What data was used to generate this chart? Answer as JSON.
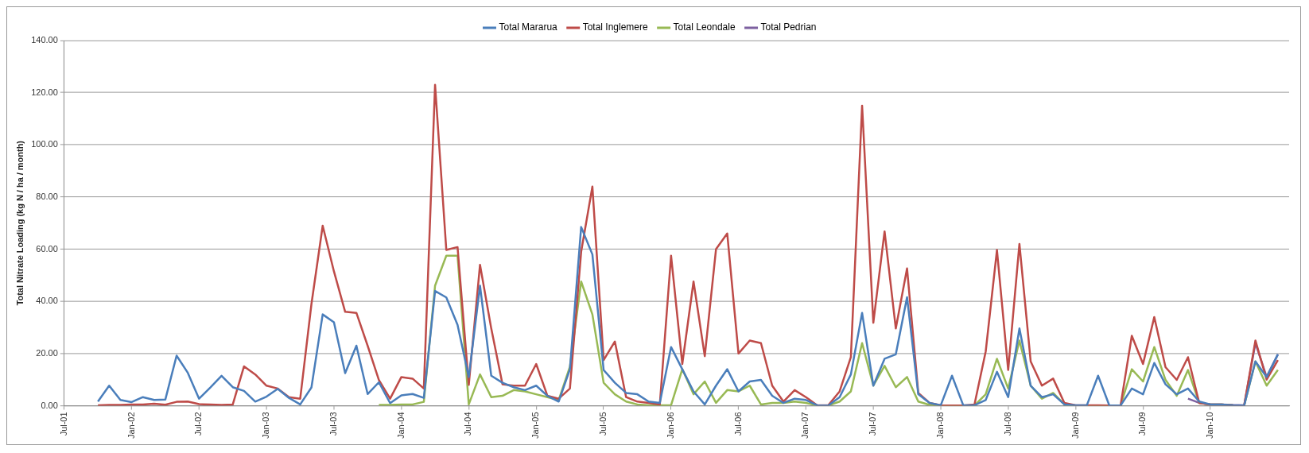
{
  "chart_data": {
    "type": "line",
    "ylabel": "Total Nitrate Loading (kg N / ha / month)",
    "x": [
      "2001-10",
      "2001-11",
      "2001-12",
      "2002-01",
      "2002-02",
      "2002-03",
      "2002-04",
      "2002-05",
      "2002-06",
      "2002-07",
      "2002-08",
      "2002-09",
      "2002-10",
      "2002-11",
      "2002-12",
      "2003-01",
      "2003-02",
      "2003-03",
      "2003-04",
      "2003-05",
      "2003-06",
      "2003-07",
      "2003-08",
      "2003-09",
      "2003-10",
      "2003-11",
      "2003-12",
      "2004-01",
      "2004-02",
      "2004-03",
      "2004-04",
      "2004-05",
      "2004-06",
      "2004-07",
      "2004-08",
      "2004-09",
      "2004-10",
      "2004-11",
      "2004-12",
      "2005-01",
      "2005-02",
      "2005-03",
      "2005-04",
      "2005-05",
      "2005-06",
      "2005-07",
      "2005-08",
      "2005-09",
      "2005-10",
      "2005-11",
      "2005-12",
      "2006-01",
      "2006-02",
      "2006-03",
      "2006-04",
      "2006-05",
      "2006-06",
      "2006-07",
      "2006-08",
      "2006-09",
      "2006-10",
      "2006-11",
      "2006-12",
      "2007-01",
      "2007-02",
      "2007-03",
      "2007-04",
      "2007-05",
      "2007-06",
      "2007-07",
      "2007-08",
      "2007-09",
      "2007-10",
      "2007-11",
      "2007-12",
      "2008-01",
      "2008-02",
      "2008-03",
      "2008-04",
      "2008-05",
      "2008-06",
      "2008-07",
      "2008-08",
      "2008-09",
      "2008-10",
      "2008-11",
      "2008-12",
      "2009-01",
      "2009-02",
      "2009-03",
      "2009-04",
      "2009-05",
      "2009-06",
      "2009-07",
      "2009-08",
      "2009-09",
      "2009-10",
      "2009-11",
      "2009-12",
      "2010-01",
      "2010-02",
      "2010-03",
      "2010-04",
      "2010-05",
      "2010-06",
      "2010-07"
    ],
    "series": [
      {
        "name": "Total Mararua",
        "color": "#4a7ebb",
        "values": [
          1.6,
          7.7,
          2.2,
          1.4,
          3.3,
          2.2,
          2.4,
          19.2,
          12.6,
          2.7,
          7,
          11.5,
          7.1,
          5.7,
          1.6,
          3.5,
          6.5,
          3,
          0.5,
          7,
          35,
          32,
          12.5,
          23,
          4.5,
          9,
          1,
          4,
          4.5,
          3,
          44,
          41.5,
          31,
          11,
          46,
          11.5,
          8.8,
          7.1,
          6,
          7.7,
          3.8,
          1.6,
          14,
          68.5,
          58,
          13.7,
          8.8,
          4.9,
          4.4,
          1.6,
          1.1,
          22.5,
          14,
          5.5,
          0.5,
          7.7,
          14,
          5.5,
          9.3,
          9.9,
          3.8,
          1.1,
          2.7,
          2.2,
          0.2,
          0.1,
          3.3,
          12,
          35.6,
          7.7,
          18,
          19.7,
          41.6,
          4.4,
          1.1,
          0.2,
          11.5,
          0.2,
          0.2,
          2.2,
          13,
          3.3,
          29.6,
          7.7,
          3.3,
          4.4,
          0.5,
          0.2,
          0.2,
          11.5,
          0.1,
          0.1,
          6.6,
          4.4,
          16.4,
          8.2,
          4.4,
          6.6,
          1.6,
          0.5,
          0.5,
          0.2,
          0.1,
          17,
          11,
          19.7
        ]
      },
      {
        "name": "Total Inglemere",
        "color": "#be4b48",
        "values": [
          0.2,
          0.3,
          0.3,
          0.5,
          0.5,
          0.8,
          0.4,
          1.5,
          1.6,
          0.6,
          0.5,
          0.3,
          0.5,
          15.1,
          12,
          7.7,
          6.6,
          3.3,
          2.7,
          39,
          69,
          51.5,
          36,
          35.6,
          23,
          9.9,
          2.7,
          11,
          10.4,
          6.6,
          123,
          59.7,
          60.8,
          8,
          54,
          29.6,
          8.2,
          7.7,
          7.7,
          16,
          3.8,
          2.7,
          6.6,
          59,
          84,
          17.5,
          24.6,
          3.3,
          1.6,
          1.1,
          0.5,
          57.5,
          16,
          47.6,
          19,
          60,
          66,
          20,
          25,
          24,
          7.7,
          1.6,
          6,
          3.3,
          0.2,
          0.2,
          5.5,
          18.6,
          115,
          31.8,
          66.8,
          29.6,
          52.6,
          4.9,
          1.1,
          0.2,
          0.1,
          0.1,
          0.5,
          20.8,
          59.7,
          13.7,
          62,
          17,
          7.7,
          10.4,
          1.1,
          0.2,
          0.2,
          0.2,
          0.1,
          0.1,
          26.8,
          16,
          34,
          14.8,
          9.9,
          18.6,
          1.1,
          0.5,
          0.5,
          0.2,
          0.1,
          25,
          10,
          17.5
        ]
      },
      {
        "name": "Total Leondale",
        "color": "#98b954",
        "x": [
          "2003-11",
          "2003-12",
          "2004-01",
          "2004-02",
          "2004-03",
          "2004-04",
          "2004-05",
          "2004-06",
          "2004-07",
          "2004-08",
          "2004-09",
          "2004-10",
          "2004-11",
          "2004-12",
          "2005-01",
          "2005-02",
          "2005-03",
          "2005-04",
          "2005-05",
          "2005-06",
          "2005-07",
          "2005-08",
          "2005-09",
          "2005-10",
          "2005-11",
          "2005-12",
          "2006-01",
          "2006-02",
          "2006-03",
          "2006-04",
          "2006-05",
          "2006-06",
          "2006-07",
          "2006-08",
          "2006-09",
          "2006-10",
          "2006-11",
          "2006-12",
          "2007-01",
          "2007-02",
          "2007-03",
          "2007-04",
          "2007-05",
          "2007-06",
          "2007-07",
          "2007-08",
          "2007-09",
          "2007-10",
          "2007-11",
          "2007-12",
          "2008-01",
          "2008-02",
          "2008-03",
          "2008-04",
          "2008-05",
          "2008-06",
          "2008-07",
          "2008-08",
          "2008-09",
          "2008-10",
          "2008-11",
          "2008-12",
          "2009-01",
          "2009-02",
          "2009-03",
          "2009-04",
          "2009-05",
          "2009-06",
          "2009-07",
          "2009-08",
          "2009-09",
          "2009-10",
          "2009-11",
          "2009-12",
          "2010-01",
          "2010-02",
          "2010-03",
          "2010-04",
          "2010-05",
          "2010-06",
          "2010-07"
        ],
        "values": [
          0.3,
          0.3,
          0.5,
          0.5,
          1.5,
          46,
          57.5,
          57.5,
          0.5,
          12,
          3.3,
          3.8,
          6,
          5.5,
          4.4,
          3.3,
          2.2,
          15,
          47.6,
          35,
          8.8,
          4.4,
          1.6,
          0.5,
          0.2,
          0.2,
          0.2,
          14,
          4.4,
          9.3,
          1.1,
          6,
          5.5,
          7.7,
          0.5,
          1.1,
          1.1,
          1.6,
          1.1,
          0.1,
          0.1,
          1.6,
          5.5,
          24,
          7.7,
          15.3,
          7.1,
          11,
          1.6,
          0.3,
          0.1,
          0.1,
          0.1,
          0.1,
          4.4,
          18,
          6.6,
          25,
          7.7,
          2.7,
          4.9,
          0.5,
          0.1,
          0.1,
          0.1,
          0.1,
          0.1,
          14,
          9.3,
          22.5,
          9.9,
          3.8,
          13.7,
          1.1,
          0.5,
          0.5,
          0.2,
          0.1,
          17,
          7.7,
          13.7
        ]
      },
      {
        "name": "Total Pedrian",
        "color": "#7d60a0",
        "x": [
          "2009-11",
          "2009-12",
          "2010-01",
          "2010-02",
          "2010-03",
          "2010-04",
          "2010-05",
          "2010-06",
          "2010-07"
        ],
        "values": [
          2.7,
          1.1,
          0.5,
          0.5,
          0.3,
          0.2,
          24,
          11,
          19.7
        ]
      }
    ],
    "xlim": [
      "2001-07",
      "2010-08"
    ],
    "xticks": [
      {
        "value": "2001-07",
        "label": "Jul-01"
      },
      {
        "value": "2002-01",
        "label": "Jan-02"
      },
      {
        "value": "2002-07",
        "label": "Jul-02"
      },
      {
        "value": "2003-01",
        "label": "Jan-03"
      },
      {
        "value": "2003-07",
        "label": "Jul-03"
      },
      {
        "value": "2004-01",
        "label": "Jan-04"
      },
      {
        "value": "2004-07",
        "label": "Jul-04"
      },
      {
        "value": "2005-01",
        "label": "Jan-05"
      },
      {
        "value": "2005-07",
        "label": "Jul-05"
      },
      {
        "value": "2006-01",
        "label": "Jan-06"
      },
      {
        "value": "2006-07",
        "label": "Jul-06"
      },
      {
        "value": "2007-01",
        "label": "Jan-07"
      },
      {
        "value": "2007-07",
        "label": "Jul-07"
      },
      {
        "value": "2008-01",
        "label": "Jan-08"
      },
      {
        "value": "2008-07",
        "label": "Jul-08"
      },
      {
        "value": "2009-01",
        "label": "Jan-09"
      },
      {
        "value": "2009-07",
        "label": "Jul-09"
      },
      {
        "value": "2010-01",
        "label": "Jan-10"
      }
    ],
    "ylim": [
      0,
      140
    ],
    "yticks": [
      {
        "value": 0,
        "label": "0.00"
      },
      {
        "value": 20,
        "label": "20.00"
      },
      {
        "value": 40,
        "label": "40.00"
      },
      {
        "value": 60,
        "label": "60.00"
      },
      {
        "value": 80,
        "label": "80.00"
      },
      {
        "value": 100,
        "label": "100.00"
      },
      {
        "value": 120,
        "label": "120.00"
      },
      {
        "value": 140,
        "label": "140.00"
      }
    ],
    "grid": "y",
    "legend": "top",
    "marker": "none",
    "line_style": "solid"
  }
}
